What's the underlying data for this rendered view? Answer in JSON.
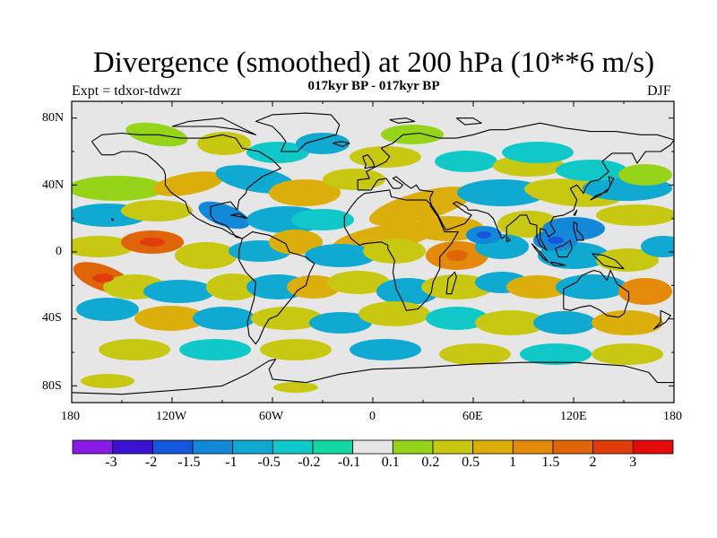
{
  "title": "Divergence (smoothed) at 200 hPa (10**6 m/s)",
  "subtitle": "017kyr BP - 017kyr BP",
  "experiment": "Expt = tdxor-tdwzr",
  "season": "DJF",
  "lat_labels": [
    "80N",
    "40N",
    "0",
    "40S",
    "80S"
  ],
  "lon_labels": [
    "180",
    "120W",
    "60W",
    "0",
    "60E",
    "120E",
    "180"
  ],
  "colorbar": {
    "colors": [
      "#8a1be6",
      "#3b12cf",
      "#1656dc",
      "#1488d8",
      "#10a9d2",
      "#10c8c8",
      "#12d8a0",
      "#e6e6e6",
      "#96d41a",
      "#c8c812",
      "#dcae0c",
      "#e48a0a",
      "#e06408",
      "#e03c0a",
      "#e40c0a"
    ],
    "labels": [
      "-3",
      "-2",
      "-1.5",
      "-1",
      "-0.5",
      "-0.2",
      "-0.1",
      "0.1",
      "0.2",
      "0.5",
      "1",
      "1.5",
      "2",
      "3"
    ]
  },
  "colors": {
    "land_outline": "#000000",
    "neutral_fill": "#e6e6e6"
  }
}
